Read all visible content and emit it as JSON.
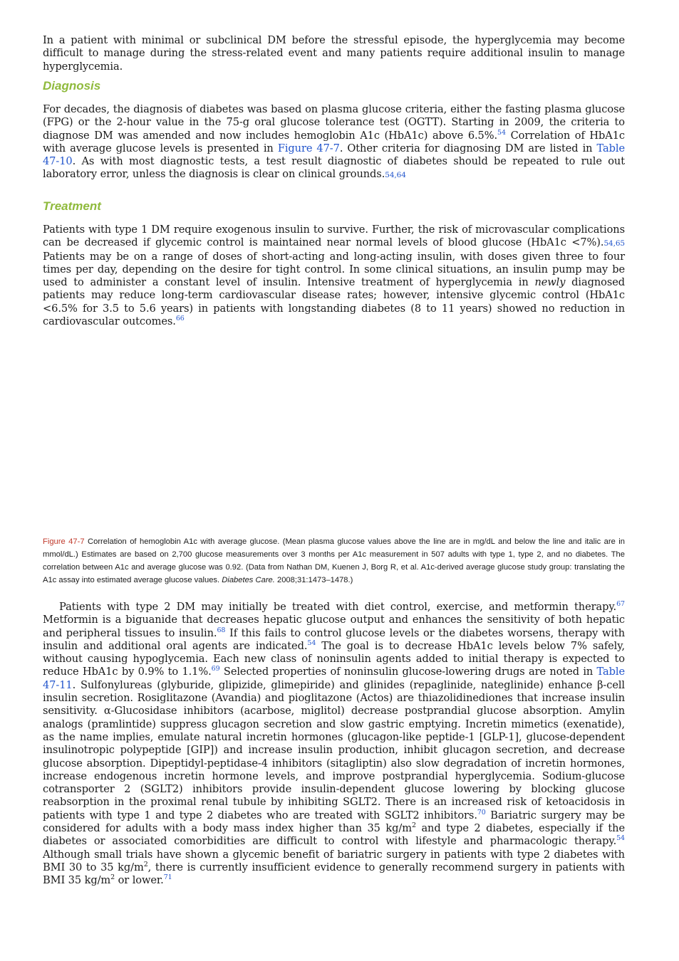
{
  "intro_paragraph": "In a patient with minimal or subclinical DM before the stressful episode, the hyperglycemia may become difficult to manage during the stress-related event and many patients require additional insulin to manage hyperglycemia.",
  "diagnosis": {
    "heading": "Diagnosis",
    "text_a": "For decades, the diagnosis of diabetes was based on plasma glucose criteria, either the fasting plasma glucose (FPG) or the 2-hour value in the 75-g oral glucose tolerance test (OGTT). Starting in 2009, the criteria to diagnose DM was amended and now includes hemoglobin A1c (HbA1c) above 6.5%.",
    "ref_a": "54",
    "text_b": " Correlation of HbA1c with average glucose levels is presented in ",
    "link_figure": "Figure 47-7",
    "text_c": ". Other criteria for diagnosing DM are listed in ",
    "link_table": "Table 47-10",
    "text_d": ". As with most diagnostic tests, a test result diagnostic of diabetes should be repeated to rule out laboratory error, unless the diagnosis is clear on clinical grounds.",
    "ref_b": "54,64"
  },
  "treatment": {
    "heading": "Treatment",
    "text_a": "Patients with type 1 DM require exogenous insulin to survive. Further, the risk of microvascular complications can be decreased if glycemic control is maintained near normal levels of blood glucose (HbA1c <7%).",
    "ref_a": "54,65",
    "text_b": " Patients may be on a range of doses of short-acting and long-acting insulin, with doses given three to four times per day, depending on the desire for tight control. In some clinical situations, an insulin pump may be used to administer a constant level of insulin. Intensive treatment of hyperglycemia in ",
    "em_word": "newly",
    "text_c": " diagnosed patients may reduce long-term cardiovascular disease rates; however, intensive glycemic control (HbA1c <6.5% for 3.5 to 5.6 years) in patients with longstanding diabetes (8 to 11 years) showed no reduction in cardiovascular outcomes.",
    "ref_b": "66"
  },
  "figure_caption": {
    "label": "Figure 47-7",
    "text_a": " Correlation of hemoglobin A1c with average glucose. (Mean plasma glucose values above the line are in mg/dL and below the line and italic are in mmol/dL.) Estimates are based on 2,700 glucose measurements over 3 months per A1c measurement in 507 adults with type 1, type 2, and no diabetes. The correlation between A1c and average glucose was 0.92. (Data from Nathan DM, Kuenen J, Borg R, et al. A1c-derived average glucose study group: translating the A1c assay into estimated average glucose values. ",
    "journal": "Diabetes Care.",
    "text_b": " 2008;31:1473–1478.)"
  },
  "type2_paragraph": {
    "t1": "Patients with type 2 DM may initially be treated with diet control, exercise, and metformin therapy.",
    "r1": "67",
    "t2": " Metformin is a biguanide that decreases hepatic glucose output and enhances the sensitivity of both hepatic and peripheral tissues to insulin.",
    "r2": "68",
    "t3": " If this fails to control glucose levels or the diabetes worsens, therapy with insulin and additional oral agents are indicated.",
    "r3": "54",
    "t4": " The goal is to decrease HbA1c levels below 7% safely, without causing hypoglycemia. Each new class of noninsulin agents added to initial therapy is expected to reduce HbA1c by 0.9% to 1.1%.",
    "r4": "69",
    "t5": " Selected properties of noninsulin glucose-lowering drugs are noted in ",
    "link_table": "Table 47-11",
    "t6": ". Sulfonylureas (glyburide, glipizide, glimepiride) and glinides (repaglinide, nateglinide) enhance β-cell insulin secretion. Rosiglitazone (Avandia) and pioglitazone (Actos) are thiazolidinediones that increase insulin sensitivity. α-Glucosidase inhibitors (acarbose, miglitol) decrease postprandial glucose absorption. Amylin analogs (pramlintide) suppress glucagon secretion and slow gastric emptying. Incretin mimetics (exenatide), as the name implies, emulate natural incretin hormones (glucagon-like peptide-1 [GLP-1], glucose-dependent insulinotropic polypeptide [GIP]) and increase insulin production, inhibit glucagon secretion, and decrease glucose absorption. Dipeptidyl-peptidase-4 inhibitors (sitagliptin) also slow degradation of incretin hormones, increase endogenous incretin hormone levels, and improve postprandial hyperglycemia. Sodium-glucose cotransporter 2 (SGLT2) inhibitors provide insulin-dependent glucose lowering by blocking glucose reabsorption in the proximal renal tubule by inhibiting SGLT2. There is an increased risk of ketoacidosis in patients with type 1 and type 2 diabetes who are treated with SGLT2 inhibitors.",
    "r5": "70",
    "t7": " Bariatric surgery may be considered for adults with a body mass index higher than 35 kg/m",
    "sq1": "2",
    "t8": " and type 2 diabetes, especially if the diabetes or associated comorbidities are difficult to control with lifestyle and pharmacologic therapy.",
    "r6": "54",
    "t9": " Although small trials have shown a glycemic benefit of bariatric surgery in patients with type 2 diabetes with BMI 30 to 35 kg/m",
    "sq2": "2",
    "t10": ", there is currently insufficient evidence to generally recommend surgery in patients with BMI 35 kg/m",
    "sq3": "2",
    "t11": " or lower.",
    "r7": "71"
  }
}
